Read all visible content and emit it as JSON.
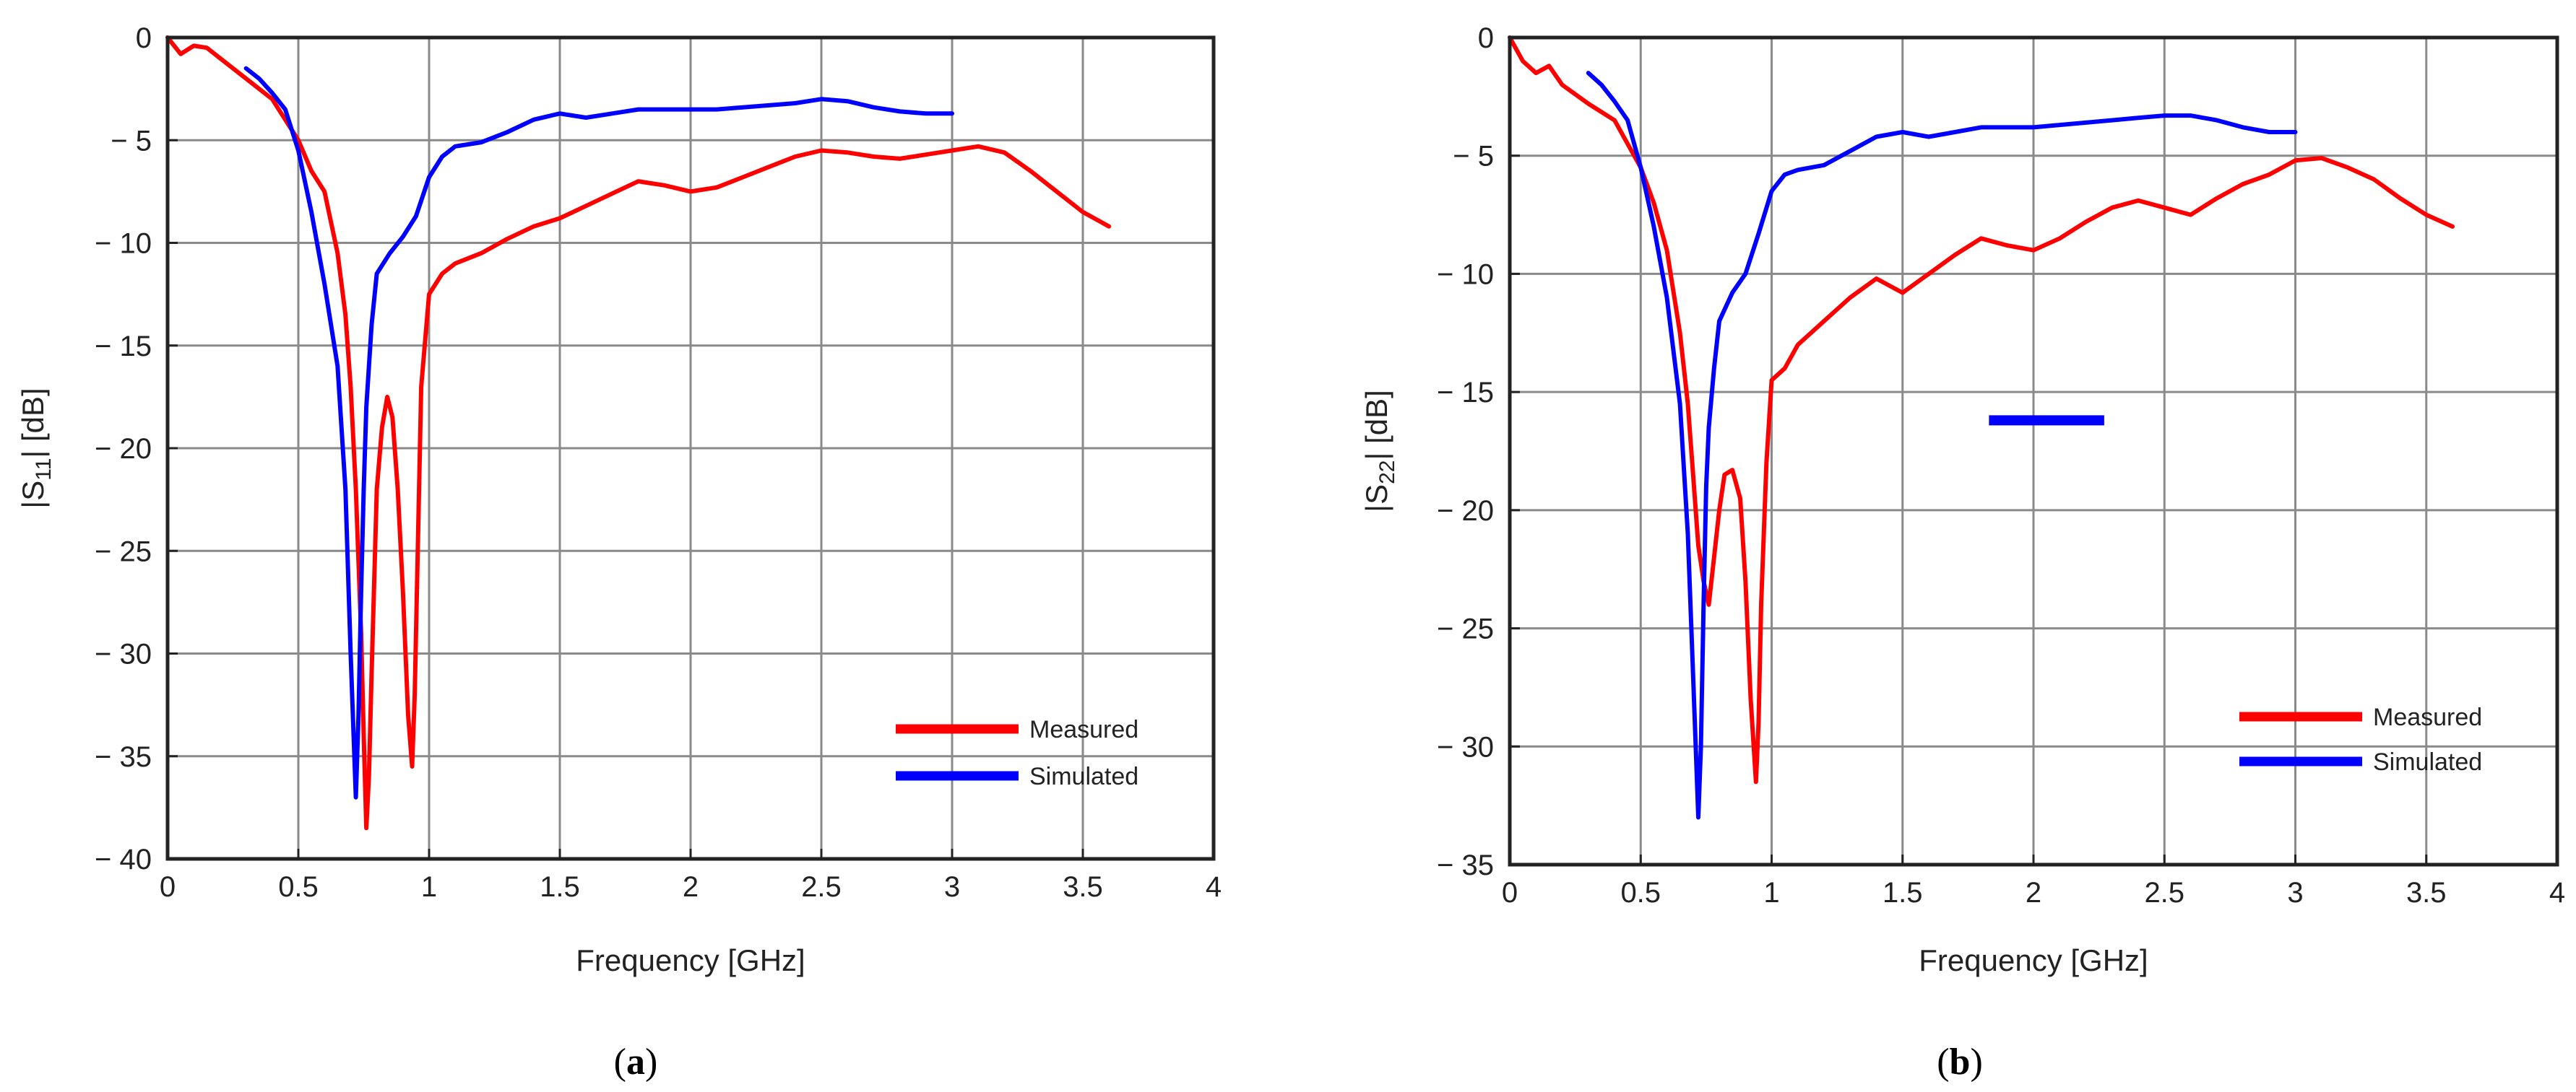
{
  "chart_data": [
    {
      "type": "line",
      "panel": "(a)",
      "caption_letter": "a",
      "title": "",
      "xlabel": "Frequency [GHz]",
      "ylabel_base": "|S",
      "ylabel_sub": "11",
      "ylabel_tail": "| [dB]",
      "xlim": [
        0,
        4
      ],
      "ylim": [
        -40,
        0
      ],
      "xticks": [
        0,
        0.5,
        1,
        1.5,
        2,
        2.5,
        3,
        3.5,
        4
      ],
      "xtick_labels": [
        "0",
        "0.5",
        "1",
        "1.5",
        "2",
        "2.5",
        "3",
        "3.5",
        "4"
      ],
      "yticks": [
        0,
        -5,
        -10,
        -15,
        -20,
        -25,
        -30,
        -35,
        -40
      ],
      "ytick_labels": [
        "0",
        "− 5",
        "− 10",
        "− 15",
        "− 20",
        "− 25",
        "− 30",
        "− 35",
        "− 40"
      ],
      "grid": true,
      "legend": "bottom-right",
      "series": [
        {
          "name": "Measured",
          "color": "#ff0000",
          "x": [
            0,
            0.05,
            0.1,
            0.15,
            0.2,
            0.3,
            0.4,
            0.5,
            0.55,
            0.6,
            0.65,
            0.68,
            0.7,
            0.72,
            0.74,
            0.75,
            0.76,
            0.77,
            0.78,
            0.8,
            0.82,
            0.84,
            0.86,
            0.88,
            0.9,
            0.92,
            0.935,
            0.945,
            0.955,
            0.97,
            1.0,
            1.05,
            1.1,
            1.2,
            1.3,
            1.4,
            1.5,
            1.6,
            1.7,
            1.8,
            1.9,
            2.0,
            2.1,
            2.2,
            2.3,
            2.4,
            2.5,
            2.6,
            2.7,
            2.8,
            2.9,
            3.0,
            3.1,
            3.2,
            3.3,
            3.4,
            3.5,
            3.6
          ],
          "y": [
            0,
            -0.8,
            -0.4,
            -0.5,
            -1.0,
            -2.0,
            -3.0,
            -5.0,
            -6.5,
            -7.5,
            -10.5,
            -13.5,
            -17,
            -22,
            -29,
            -34,
            -38.5,
            -36,
            -31,
            -22,
            -19,
            -17.5,
            -18.5,
            -22,
            -27,
            -33,
            -35.5,
            -32,
            -26,
            -17,
            -12.5,
            -11.5,
            -11,
            -10.5,
            -9.8,
            -9.2,
            -8.8,
            -8.2,
            -7.6,
            -7.0,
            -7.2,
            -7.5,
            -7.3,
            -6.8,
            -6.3,
            -5.8,
            -5.5,
            -5.6,
            -5.8,
            -5.9,
            -5.7,
            -5.5,
            -5.3,
            -5.6,
            -6.5,
            -7.5,
            -8.5,
            -9.2
          ]
        },
        {
          "name": "Simulated",
          "color": "#0000ff",
          "x": [
            0.3,
            0.35,
            0.4,
            0.45,
            0.5,
            0.55,
            0.6,
            0.65,
            0.68,
            0.7,
            0.72,
            0.73,
            0.74,
            0.75,
            0.76,
            0.78,
            0.8,
            0.85,
            0.9,
            0.95,
            1.0,
            1.05,
            1.1,
            1.2,
            1.3,
            1.4,
            1.5,
            1.6,
            1.7,
            1.8,
            1.9,
            2.0,
            2.1,
            2.2,
            2.3,
            2.4,
            2.5,
            2.6,
            2.7,
            2.8,
            2.9,
            3.0
          ],
          "y": [
            -1.5,
            -2.0,
            -2.7,
            -3.5,
            -5.5,
            -8.5,
            -12,
            -16,
            -22,
            -30,
            -37,
            -33,
            -27,
            -22,
            -18,
            -14,
            -11.5,
            -10.5,
            -9.7,
            -8.7,
            -6.8,
            -5.8,
            -5.3,
            -5.1,
            -4.6,
            -4.0,
            -3.7,
            -3.9,
            -3.7,
            -3.5,
            -3.5,
            -3.5,
            -3.5,
            -3.4,
            -3.3,
            -3.2,
            -3.0,
            -3.1,
            -3.4,
            -3.6,
            -3.7,
            -3.7
          ]
        }
      ]
    },
    {
      "type": "line",
      "panel": "(b)",
      "caption_letter": "b",
      "title": "",
      "xlabel": "Frequency [GHz]",
      "ylabel_base": "|S",
      "ylabel_sub": "22",
      "ylabel_tail": "| [dB]",
      "xlim": [
        0,
        4
      ],
      "ylim": [
        -35,
        0
      ],
      "xticks": [
        0,
        0.5,
        1,
        1.5,
        2,
        2.5,
        3,
        3.5,
        4
      ],
      "xtick_labels": [
        "0",
        "0.5",
        "1",
        "1.5",
        "2",
        "2.5",
        "3",
        "3.5",
        "4"
      ],
      "yticks": [
        0,
        -5,
        -10,
        -15,
        -20,
        -25,
        -30,
        -35
      ],
      "ytick_labels": [
        "0",
        "− 5",
        "− 10",
        "− 15",
        "− 20",
        "− 25",
        "− 30",
        "− 35"
      ],
      "grid": true,
      "legend": "bottom-right",
      "series": [
        {
          "name": "Measured",
          "color": "#ff0000",
          "x": [
            0,
            0.05,
            0.1,
            0.15,
            0.2,
            0.3,
            0.4,
            0.5,
            0.55,
            0.6,
            0.65,
            0.68,
            0.7,
            0.72,
            0.74,
            0.76,
            0.78,
            0.8,
            0.82,
            0.85,
            0.88,
            0.9,
            0.92,
            0.94,
            0.95,
            0.96,
            0.98,
            1.0,
            1.05,
            1.1,
            1.2,
            1.3,
            1.4,
            1.5,
            1.6,
            1.7,
            1.8,
            1.9,
            2.0,
            2.1,
            2.2,
            2.3,
            2.4,
            2.5,
            2.6,
            2.7,
            2.8,
            2.9,
            3.0,
            3.1,
            3.2,
            3.3,
            3.4,
            3.5,
            3.6
          ],
          "y": [
            0,
            -1.0,
            -1.5,
            -1.2,
            -2.0,
            -2.8,
            -3.5,
            -5.5,
            -7.0,
            -9.0,
            -12.5,
            -15.5,
            -18.5,
            -21.5,
            -23.0,
            -24.0,
            -22.0,
            -20.0,
            -18.5,
            -18.3,
            -19.5,
            -23.0,
            -28.0,
            -31.5,
            -29.0,
            -24.0,
            -18.0,
            -14.5,
            -14.0,
            -13.0,
            -12.0,
            -11.0,
            -10.2,
            -10.8,
            -10.0,
            -9.2,
            -8.5,
            -8.8,
            -9.0,
            -8.5,
            -7.8,
            -7.2,
            -6.9,
            -7.2,
            -7.5,
            -6.8,
            -6.2,
            -5.8,
            -5.2,
            -5.1,
            -5.5,
            -6.0,
            -6.8,
            -7.5,
            -8.0
          ]
        },
        {
          "name": "Simulated",
          "color": "#0000ff",
          "x": [
            0.3,
            0.35,
            0.4,
            0.45,
            0.5,
            0.55,
            0.6,
            0.65,
            0.68,
            0.7,
            0.72,
            0.73,
            0.74,
            0.75,
            0.76,
            0.78,
            0.8,
            0.85,
            0.9,
            0.95,
            1.0,
            1.05,
            1.1,
            1.2,
            1.3,
            1.4,
            1.5,
            1.6,
            1.7,
            1.8,
            1.9,
            2.0,
            2.1,
            2.2,
            2.3,
            2.4,
            2.5,
            2.6,
            2.7,
            2.8,
            2.9,
            3.0
          ],
          "y": [
            -1.5,
            -2.0,
            -2.7,
            -3.5,
            -5.5,
            -8.0,
            -11.0,
            -15.5,
            -21.0,
            -27.0,
            -33.0,
            -30.0,
            -24.0,
            -19.0,
            -16.5,
            -14.0,
            -12.0,
            -10.8,
            -10.0,
            -8.3,
            -6.5,
            -5.8,
            -5.6,
            -5.4,
            -4.8,
            -4.2,
            -4.0,
            -4.2,
            -4.0,
            -3.8,
            -3.8,
            -3.8,
            -3.7,
            -3.6,
            -3.5,
            -3.4,
            -3.3,
            -3.3,
            -3.5,
            -3.8,
            -4.0,
            -4.0
          ]
        }
      ],
      "stray_mark": {
        "x1": 1.83,
        "x2": 2.27,
        "y": -16.2,
        "color": "#0000ff"
      }
    }
  ]
}
